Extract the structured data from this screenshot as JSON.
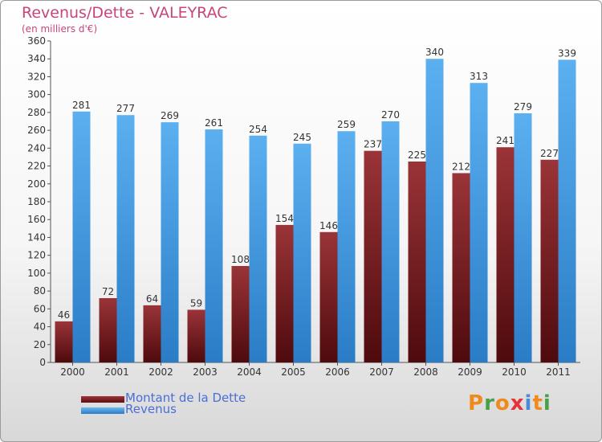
{
  "title": "Revenus/Dette - VALEYRAC",
  "unit": "(en milliers d'€)",
  "colors": {
    "dette": "#7a2a2e",
    "revenus": "#4aa0e6",
    "axis_text": "#333333",
    "title": "#c8457a",
    "legend_text": "#4a6fd6"
  },
  "logo": {
    "text": "Proxiti",
    "colors": [
      "#f08a1c",
      "#4aa04a",
      "#f08a1c",
      "#e8303a",
      "#4a8ad6",
      "#f08a1c",
      "#4aa04a"
    ]
  },
  "chart_data": {
    "type": "bar",
    "title": "Revenus/Dette - VALEYRAC",
    "ylabel": "(en milliers d'€)",
    "xlabel": "",
    "ylim": [
      0,
      360
    ],
    "yticks": [
      0,
      20,
      40,
      60,
      80,
      100,
      120,
      140,
      160,
      180,
      200,
      220,
      240,
      260,
      280,
      300,
      320,
      340,
      360
    ],
    "grid": false,
    "legend": "bottom-left",
    "categories": [
      "2000",
      "2001",
      "2002",
      "2003",
      "2004",
      "2005",
      "2006",
      "2007",
      "2008",
      "2009",
      "2010",
      "2011"
    ],
    "series": [
      {
        "name": "Montant de la Dette",
        "values": [
          46,
          72,
          64,
          59,
          108,
          154,
          146,
          237,
          225,
          212,
          241,
          227
        ]
      },
      {
        "name": "Revenus",
        "values": [
          281,
          277,
          269,
          261,
          254,
          245,
          259,
          270,
          340,
          313,
          279,
          339
        ]
      }
    ]
  }
}
